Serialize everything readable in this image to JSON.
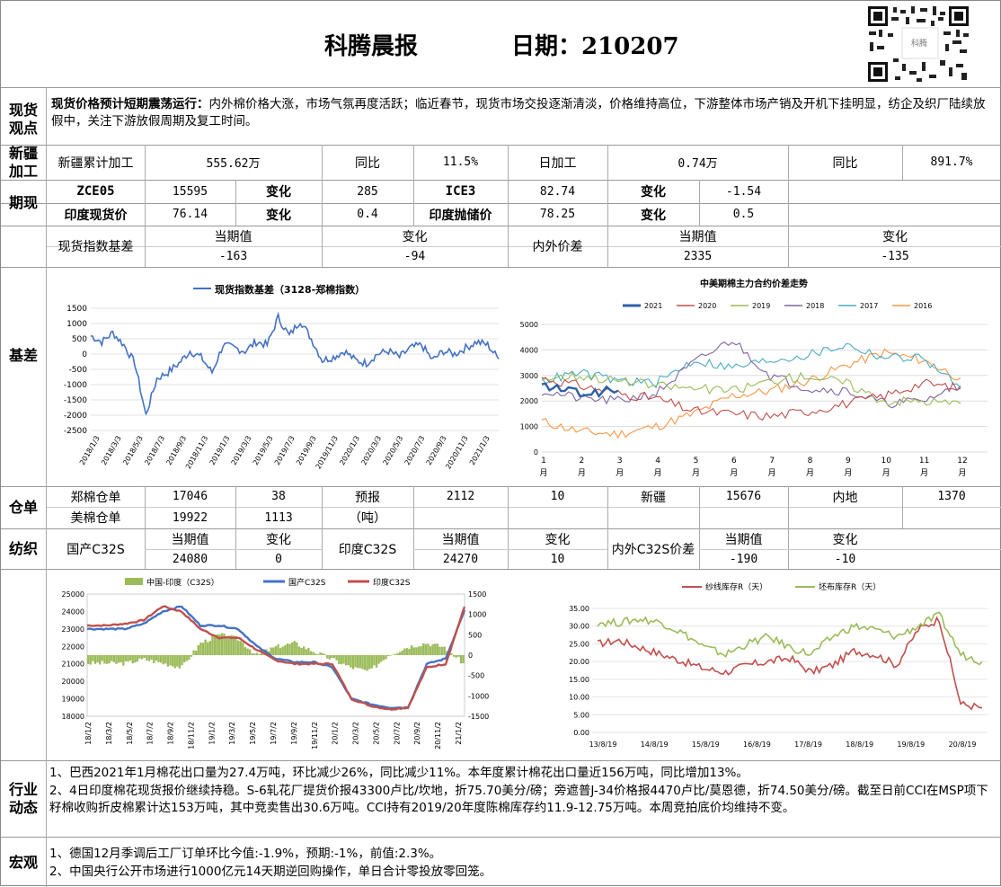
{
  "header": {
    "title": "科腾晨报",
    "date_label": "日期：210207",
    "qr_text": "科腾"
  },
  "spot": {
    "section": "现货观点",
    "headline": "现货价格预计短期震荡运行：",
    "body": "内外棉价格大涨，市场气氛再度活跃；临近春节，现货市场交投逐渐清淡，价格维持高位，下游整体市场产销及开机下挂明显，纺企及织厂陆续放假中，关注下游放假周期及复工时间。"
  },
  "xinjiang": {
    "section": "新疆加工",
    "cum_label": "新疆累计加工",
    "cum_value": "555.62万",
    "yoy1_label": "同比",
    "yoy1_value": "11.5%",
    "daily_label": "日加工",
    "daily_value": "0.74万",
    "yoy2_label": "同比",
    "yoy2_value": "891.7%"
  },
  "futures": {
    "section": "期现",
    "rows": [
      {
        "a_label": "ZCE05",
        "a_value": "15595",
        "a_chg_label": "变化",
        "a_chg": "285",
        "b_label": "ICE3",
        "b_value": "82.74",
        "b_chg_label": "变化",
        "b_chg": "-1.54"
      },
      {
        "a_label": "印度现货价",
        "a_value": "76.14",
        "a_chg_label": "变化",
        "a_chg": "0.4",
        "b_label": "印度抛储价",
        "b_value": "78.25",
        "b_chg_label": "变化",
        "b_chg": "0.5"
      }
    ]
  },
  "basis": {
    "section": "基差",
    "idx_label": "现货指数基差",
    "cur_label": "当期值",
    "chg_label": "变化",
    "idx_cur": "-163",
    "idx_chg": "-94",
    "spread_label": "内外价差",
    "spread_cur_label": "当期值",
    "spread_chg_label": "变化",
    "spread_cur": "2335",
    "spread_chg": "-135"
  },
  "warehouse": {
    "section": "仓单",
    "zce_label": "郑棉仓单",
    "zce_value": "17046",
    "zce_chg": "38",
    "forecast_label": "预报",
    "forecast_unit": "（吨）",
    "forecast_value": "2112",
    "forecast_chg": "10",
    "xj_label": "新疆",
    "xj_value": "15676",
    "inland_label": "内地",
    "inland_value": "1370",
    "us_label": "美棉仓单",
    "us_value": "19922",
    "us_chg": "1113"
  },
  "textile": {
    "section": "纺织",
    "dom_label": "国产C32S",
    "cur_label": "当期值",
    "chg_label": "变化",
    "dom_cur": "24080",
    "dom_chg": "0",
    "ind_label": "印度C32S",
    "ind_cur": "24270",
    "ind_chg": "10",
    "spread_label": "内外C32S价差",
    "spread_cur": "-190",
    "spread_chg": "-10"
  },
  "industry": {
    "section": "行业动态",
    "items": [
      "1、巴西2021年1月棉花出口量为27.4万吨，环比减少26%，同比减少11%。本年度累计棉花出口量近156万吨，同比增加13%。",
      "2、4日印度棉花现货报价继续持稳。S-6轧花厂提货价报43300卢比/坎地，折75.70美分/磅；旁遮普J-34价格报4470卢比/莫恩德，折74.50美分/磅。截至日前CCI在MSP项下籽棉收购折皮棉累计达153万吨，其中竞卖售出30.6万吨。CCI持有2019/20年度陈棉库存约11.9-12.75万吨。本周竞拍底价均维持不变。"
    ]
  },
  "macro": {
    "section": "宏观",
    "items": [
      "1、德国12月季调后工厂订单环比今值:-1.9%，预期:-1%，前值:2.3%。",
      "2、中国央行公开市场进行1000亿元14天期逆回购操作，单日合计零投放零回笼。"
    ]
  },
  "chart_data": [
    {
      "type": "line",
      "title": "",
      "legend": [
        "现货指数基差（3128-郑棉指数）"
      ],
      "color": "#4472c4",
      "ylim": [
        -2500,
        1500
      ],
      "yticks": [
        "1500",
        "1000",
        "500",
        "0",
        "-500",
        "-1000",
        "-1500",
        "-2000",
        "-2500"
      ],
      "x_ticks": [
        "2018/1/3",
        "2018/3/3",
        "2018/5/3",
        "2018/7/3",
        "2018/9/3",
        "2018/11/3",
        "2019/1/3",
        "2019/3/3",
        "2019/5/3",
        "2019/7/3",
        "2019/9/3",
        "2019/11/3",
        "2020/1/3",
        "2020/3/3",
        "2020/5/3",
        "2020/7/3",
        "2020/9/3",
        "2020/11/3",
        "2021/1/3"
      ],
      "x": [
        "2018/1",
        "2018/2",
        "2018/3",
        "2018/4",
        "2018/5",
        "2018/6",
        "2018/7",
        "2018/8",
        "2018/9",
        "2018/10",
        "2018/11",
        "2018/12",
        "2019/1",
        "2019/2",
        "2019/3",
        "2019/4",
        "2019/5",
        "2019/6",
        "2019/7",
        "2019/8",
        "2019/9",
        "2019/10",
        "2019/11",
        "2019/12",
        "2020/1",
        "2020/2",
        "2020/3",
        "2020/4",
        "2020/5",
        "2020/6",
        "2020/7",
        "2020/8",
        "2020/9",
        "2020/10",
        "2020/11",
        "2020/12",
        "2021/1",
        "2021/2"
      ],
      "values": [
        600,
        400,
        700,
        300,
        -300,
        -2000,
        -800,
        -600,
        -300,
        100,
        -100,
        -600,
        300,
        200,
        100,
        400,
        300,
        1200,
        600,
        1100,
        500,
        -200,
        -100,
        100,
        -200,
        -300,
        0,
        100,
        -100,
        200,
        300,
        -200,
        100,
        0,
        200,
        400,
        300,
        -163
      ]
    },
    {
      "type": "line",
      "title": "中美期棉主力合约价差走势",
      "ylim": [
        0,
        5000
      ],
      "yticks": [
        "5000",
        "4000",
        "3000",
        "2000",
        "1000",
        "0"
      ],
      "x_ticks": [
        "1月",
        "2月",
        "3月",
        "4月",
        "5月",
        "6月",
        "7月",
        "8月",
        "9月",
        "10月",
        "11月",
        "12月"
      ],
      "series": [
        {
          "name": "2021",
          "color": "#2e5fa6",
          "values": [
            2600,
            2300,
            2400
          ]
        },
        {
          "name": "2020",
          "color": "#c0504d",
          "values": [
            2900,
            2600,
            2300,
            2100,
            1600,
            1500,
            1400,
            1600,
            1900,
            2200,
            2700,
            2500
          ]
        },
        {
          "name": "2019",
          "color": "#9bbb59",
          "values": [
            2900,
            3000,
            2800,
            2600,
            2500,
            2400,
            2800,
            3000,
            2700,
            2000,
            2000,
            1900
          ]
        },
        {
          "name": "2018",
          "color": "#8064a2",
          "values": [
            2400,
            2100,
            2000,
            2300,
            3500,
            4400,
            3000,
            2500,
            2400,
            1900,
            2000,
            2600
          ]
        },
        {
          "name": "2017",
          "color": "#4bacc6",
          "values": [
            2800,
            3100,
            2800,
            2700,
            3600,
            3300,
            3600,
            3800,
            4200,
            3700,
            3700,
            2500
          ]
        },
        {
          "name": "2016",
          "color": "#f79646",
          "values": [
            1200,
            800,
            700,
            1000,
            1500,
            2200,
            2400,
            2800,
            3400,
            3900,
            3600,
            2900
          ]
        }
      ]
    },
    {
      "type": "bar+line",
      "title": "",
      "left_ylim": [
        18000,
        25000
      ],
      "right_ylim": [
        -1500,
        1500
      ],
      "left_yticks": [
        "25000",
        "24000",
        "23000",
        "22000",
        "21000",
        "20000",
        "19000",
        "18000"
      ],
      "right_yticks": [
        "1500",
        "1000",
        "500",
        "0",
        "-500",
        "-1000",
        "-1500"
      ],
      "x_ticks": [
        "18/1/2",
        "18/3/2",
        "18/5/2",
        "18/7/2",
        "18/9/2",
        "18/11/2",
        "19/1/2",
        "19/3/2",
        "19/5/2",
        "19/7/2",
        "19/9/2",
        "19/11/2",
        "20/1/2",
        "20/3/2",
        "20/5/2",
        "20/7/2",
        "20/9/2",
        "20/11/2",
        "21/1/2"
      ],
      "series": [
        {
          "name": "中国-印度（C32S）",
          "color": "#9bbb59",
          "values": [
            -200,
            -200,
            -200,
            -100,
            -200,
            -300,
            300,
            500,
            400,
            0,
            200,
            300,
            100,
            -100,
            -300,
            -400,
            0,
            200,
            300,
            200,
            -200
          ]
        },
        {
          "name": "国产C32S",
          "color": "#4472c4",
          "values": [
            23000,
            23000,
            23000,
            23300,
            24000,
            24300,
            23200,
            23200,
            23000,
            22000,
            21300,
            21100,
            21100,
            20800,
            19000,
            18700,
            18500,
            18500,
            21000,
            21300,
            24080
          ]
        },
        {
          "name": "印度C32S",
          "color": "#c0504d",
          "values": [
            23200,
            23200,
            23300,
            23500,
            24300,
            24000,
            23000,
            22500,
            22500,
            21800,
            21200,
            21000,
            21000,
            21000,
            19000,
            18600,
            18400,
            18500,
            20800,
            21000,
            24270
          ]
        }
      ]
    },
    {
      "type": "line",
      "title": "",
      "ylim": [
        0,
        35
      ],
      "yticks": [
        "35.00",
        "30.00",
        "25.00",
        "20.00",
        "15.00",
        "10.00",
        "5.00",
        "0.00"
      ],
      "x_ticks": [
        "13/8/19",
        "14/8/19",
        "15/8/19",
        "16/8/19",
        "17/8/19",
        "18/8/19",
        "19/8/19",
        "20/8/19"
      ],
      "series": [
        {
          "name": "纱线库存R（天）",
          "color": "#c0504d",
          "values": [
            25,
            26,
            24,
            22,
            20,
            18,
            17,
            19,
            20,
            21,
            17,
            19,
            23,
            22,
            19,
            29,
            32,
            8,
            7
          ]
        },
        {
          "name": "坯布库存R（天）",
          "color": "#9bbb59",
          "values": [
            31,
            31,
            32,
            31,
            28,
            24,
            22,
            25,
            27,
            24,
            22,
            27,
            30,
            29,
            27,
            30,
            33,
            22,
            20
          ]
        }
      ]
    }
  ]
}
